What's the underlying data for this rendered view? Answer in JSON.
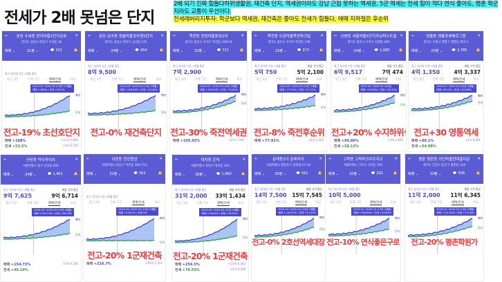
{
  "title": "전세가 2배 못넘은 단지",
  "notes": {
    "line1": "2배 되기 진짜 힘들다하위생활권, 재건축 단지, 역세권이라도 강남 근접 못하는 역세권, 5군 역세는 전세 힘이 적다 연식 좋아도, 평촌 학군지라도 교통이 우선이다.",
    "line2": "전세레버리지투자: 학군보다 역세권, 재건축은 좋아도 전세가 힘들다, 애매 지하철은 후순위"
  },
  "common": {
    "deal_type": "매매",
    "tabs": [
      "최근 3년",
      "전체 기간",
      "매매/전세",
      "비교"
    ],
    "recent_label": "최근 실거래 기준 1개월 평균",
    "listing_label": "매물 가격 평균",
    "sale": "매매",
    "jeonse": "전세",
    "back": "←",
    "close": "✕",
    "bell": "🔔",
    "comment": "💬",
    "chev": "⌄"
  },
  "colors": {
    "header": "#5b5bd6",
    "sale": "#3d3dd8",
    "jeonse": "#2e9e3e",
    "label": "#ea3a3a"
  },
  "panels": [
    {
      "name": "분당 수내동 양지마을1단지금호",
      "addr": "경기도 성남시 분당구 수내동 36",
      "size": "31평",
      "comments": "331",
      "price": "",
      "listing": "",
      "period": "2015.03~2025.05 (10년 11개월)",
      "tip": "매매 +188% / 전세 +53.5%",
      "sale_pct": 188,
      "jeonse_pct": 53.5,
      "label": "전고-19% 초선호단지",
      "stat_sale": "+188%",
      "stat_sale_amt": "+11억 2,800",
      "stat_jeonse": "+53.5%",
      "stat_jeonse_amt": "+2억 6,750"
    },
    {
      "name": "분당 금곡동 청솔마을공무원5단지",
      "addr": "경기도 성남시 분당구 금곡동 125",
      "size": "24평",
      "comments": "454",
      "price": "8억 9,500",
      "listing": "",
      "period": "2015.03~2025.05 (10년 4개월)",
      "tip": "매매 +146.33% / 전세 +33.48%",
      "sale_pct": 146.33,
      "jeonse_pct": 33.48,
      "label": "전고-0% 재건축단지",
      "stat_sale": "",
      "stat_sale_amt": "",
      "stat_jeonse": "",
      "stat_jeonse_amt": ""
    },
    {
      "name": "죽전동 현암마을동성2차",
      "addr": "경기도 용인시 수지구 죽전동 1003-8",
      "size": "32평",
      "comments": "721",
      "price": "7억 2,900",
      "listing": "",
      "period": "2015.03~2025.05 (10년 4개월)",
      "tip": "매매 +105.93% / 전세 +75.82%",
      "sale_pct": 105.93,
      "jeonse_pct": 75.82,
      "label": "전고-30% 죽전역세권",
      "stat_sale": "+105.93%",
      "stat_sale_amt": "+2억 7,500",
      "stat_jeonse": "",
      "stat_jeonse_amt": ""
    },
    {
      "name": "죽전동 도담마을죽전파크빌",
      "addr": "경기도 용인시 수지구 죽전동 339",
      "size": "23평",
      "comments": "373",
      "price": "5억 750",
      "listing": "5억 2,100",
      "period": "2015.03~2025.05 (10년 2개월)",
      "tip": "매매 +77.91% / 전세 +27.27%",
      "sale_pct": 77.91,
      "jeonse_pct": 27.27,
      "label": "전고-8% 죽전후순위",
      "stat_sale": "+77.91%",
      "stat_sale_amt": "+2억 2,225",
      "stat_jeonse": "",
      "stat_jeonse_amt": ""
    },
    {
      "name": "신봉동 서홍마을5단지우남퍼스트빌",
      "addr": "경기도 용인시 수지구 신봉동 905",
      "size": "24평",
      "comments": "1,085",
      "price": "6억 9,517",
      "listing": "7억 474",
      "period": "2015.05~2025.05 (10년)",
      "tip": "매매 +94.86% / 전세 +58.13%",
      "sale_pct": 94.86,
      "jeonse_pct": 58.13,
      "label": "전고+20% 수지하위생활권",
      "stat_sale": "+94.86%",
      "stat_sale_amt": "+3억 3,842",
      "stat_jeonse": "+58.13%",
      "stat_jeonse_amt": ""
    },
    {
      "name": "영통동 영통포레베르그원",
      "addr": "경기도 수원시 영통구 영통동 955-1",
      "size": "25평",
      "comments": "2,785",
      "price": "4억 1,350",
      "listing": "4억 3,337",
      "period": "2015.01~2025.05 (10년 4개월)",
      "tip": "매매 +80.1% / 전세 +54.98%",
      "sale_pct": 80.1,
      "jeonse_pct": 54.98,
      "label": "전고+30 영통역세",
      "stat_sale": "+80.1%",
      "stat_sale_amt": "+1억 8,391",
      "stat_jeonse": "+54.98%",
      "stat_jeonse_amt": ""
    },
    {
      "name": "신당동 약수하이츠",
      "addr": "서울특별시 중구 신당동 842",
      "size": "24평",
      "comments": "1,401",
      "price": "9억 7,625",
      "listing": "9억 6,714",
      "period": "2015.03~2025.05 (10년 4개월)",
      "tip": "매매 +154.73% / 전세 +46.19%",
      "sale_pct": 154.73,
      "jeonse_pct": 46.19,
      "label": "",
      "stat_sale": "+154.73%",
      "stat_sale_amt": "+5억 9,300",
      "stat_jeonse": "+46.19%",
      "stat_jeonse_amt": ""
    },
    {
      "name": "이촌동 한강맨션",
      "addr": "서울특별시 용산구 이촌동 300-153",
      "size": "31평",
      "comments": "263",
      "price": "",
      "listing": "",
      "period": "2015.03~2025.05 (10년 2개월)",
      "tip": "매매 +216.7% / 전세 0%",
      "sale_pct": 216.7,
      "jeonse_pct": 0,
      "label": "전고-20% 1군재건축",
      "stat_sale": "+216.7%",
      "stat_sale_amt": "+29억 2,551",
      "stat_jeonse": "",
      "stat_jeonse_amt": ""
    },
    {
      "name": "대치동 은마",
      "addr": "서울특별시 강남구 대치동 316",
      "size": "30평",
      "comments": "1,960",
      "price": "31억 2,000",
      "listing": "33억 1,434",
      "period": "2015.03~2025.05 (10년 4개월)",
      "tip": "매매 +256.5% / 전세 +76.55%",
      "sale_pct": 256.5,
      "jeonse_pct": 76.55,
      "label": "전고-20% 1군재건축",
      "stat_sale": "+256.5%",
      "stat_sale_amt": "+22억 4,483",
      "stat_jeonse": "+76.55%",
      "stat_jeonse_amt": "+2억 9,268"
    },
    {
      "name": "문래동3가 문래자이",
      "addr": "서울특별시 영등포구 문래동3가 54",
      "size": "35평",
      "comments": "561",
      "price": "14억 7,500",
      "listing": "15억 7,545",
      "period": "2015.02~2025.05 (10년 3개월)",
      "tip": "매매 +126.57% / 전세 +72.41%",
      "sale_pct": 126.57,
      "jeonse_pct": 72.41,
      "label": "전고-0% 2호선역세대장",
      "stat_sale": "",
      "stat_sale_amt": "",
      "stat_jeonse": "",
      "stat_jeonse_amt": ""
    },
    {
      "name": "고척동 고척파크푸르지오",
      "addr": "서울특별시 구로구 고척동 339",
      "size": "32평",
      "comments": "291",
      "price": "10억 5,000",
      "listing": "",
      "period": "2015.01~2025.05 (10년 4개월)",
      "tip": "매매 +108.96% / 전세 +45.82%",
      "sale_pct": 108.96,
      "jeonse_pct": 45.82,
      "label": "전고-10% 연식좋은구로",
      "stat_sale": "",
      "stat_sale_amt": "",
      "stat_jeonse": "",
      "stat_jeonse_amt": ""
    },
    {
      "name": "평촌 평촌동 귀인마을현대홈타운",
      "addr": "경기도 안양시 동안구 평촌동 314",
      "size": "33평",
      "comments": "506",
      "price": "11억 2,000",
      "listing": "11억 6,345",
      "period": "2015.01~2025.05 (10년 4개월)",
      "tip": "매매 +121.62% / 전세 +75.26%",
      "sale_pct": 121.62,
      "jeonse_pct": 75.26,
      "label": "전고-20% 평촌학원가",
      "stat_sale": "",
      "stat_sale_amt": "",
      "stat_jeonse": "",
      "stat_jeonse_amt": ""
    }
  ]
}
